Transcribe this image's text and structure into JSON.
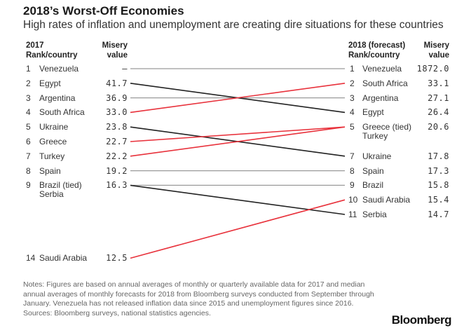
{
  "title": "2018’s Worst-Off Economies",
  "subtitle": "High rates of inflation and unemployment are creating dire situations for these countries",
  "headers": {
    "left_rank_line1": "2017",
    "left_rank_line2": "Rank/country",
    "left_value_line1": "Misery",
    "left_value_line2": "value",
    "right_rank_line1": "2018 (forecast)",
    "right_rank_line2": "Rank/country",
    "right_value_line1": "Misery",
    "right_value_line2": "value"
  },
  "colors": {
    "up": "#e8323c",
    "down": "#222222",
    "same": "#9a9a9a"
  },
  "chart_data": {
    "type": "slope",
    "title": "2018’s Worst-Off Economies",
    "subtitle": "High rates of inflation and unemployment are creating dire situations for these countries",
    "left": [
      {
        "rank": "1",
        "country": "Venezuela",
        "value": "–"
      },
      {
        "rank": "2",
        "country": "Egypt",
        "value": "41.7"
      },
      {
        "rank": "3",
        "country": "Argentina",
        "value": "36.9"
      },
      {
        "rank": "4",
        "country": "South Africa",
        "value": "33.0"
      },
      {
        "rank": "5",
        "country": "Ukraine",
        "value": "23.8"
      },
      {
        "rank": "6",
        "country": "Greece",
        "value": "22.7"
      },
      {
        "rank": "7",
        "country": "Turkey",
        "value": "22.2"
      },
      {
        "rank": "8",
        "country": "Spain",
        "value": "19.2"
      },
      {
        "rank": "9",
        "country": "Brazil (tied)",
        "country2": "Serbia",
        "value": "16.3"
      },
      {
        "rank": "14",
        "country": "Saudi Arabia",
        "value": "12.5"
      }
    ],
    "right": [
      {
        "rank": "1",
        "country": "Venezuela",
        "value": "1872.0"
      },
      {
        "rank": "2",
        "country": "South Africa",
        "value": "33.1"
      },
      {
        "rank": "3",
        "country": "Argentina",
        "value": "27.1"
      },
      {
        "rank": "4",
        "country": "Egypt",
        "value": "26.4"
      },
      {
        "rank": "5",
        "country": "Greece (tied)",
        "country2": "Turkey",
        "value": "20.6"
      },
      {
        "rank": "7",
        "country": "Ukraine",
        "value": "17.8"
      },
      {
        "rank": "8",
        "country": "Spain",
        "value": "17.3"
      },
      {
        "rank": "9",
        "country": "Brazil",
        "value": "15.8"
      },
      {
        "rank": "10",
        "country": "Saudi Arabia",
        "value": "15.4"
      },
      {
        "rank": "11",
        "country": "Serbia",
        "value": "14.7"
      }
    ],
    "links": [
      {
        "country": "Venezuela",
        "from_rank": 1,
        "to_rank": 1,
        "trend": "same"
      },
      {
        "country": "Egypt",
        "from_rank": 2,
        "to_rank": 4,
        "trend": "down"
      },
      {
        "country": "Argentina",
        "from_rank": 3,
        "to_rank": 3,
        "trend": "same"
      },
      {
        "country": "South Africa",
        "from_rank": 4,
        "to_rank": 2,
        "trend": "up"
      },
      {
        "country": "Ukraine",
        "from_rank": 5,
        "to_rank": 7,
        "trend": "down"
      },
      {
        "country": "Greece",
        "from_rank": 6,
        "to_rank": 5,
        "trend": "up"
      },
      {
        "country": "Turkey",
        "from_rank": 7,
        "to_rank": 5,
        "trend": "up"
      },
      {
        "country": "Spain",
        "from_rank": 8,
        "to_rank": 8,
        "trend": "same"
      },
      {
        "country": "Brazil",
        "from_rank": 9,
        "to_rank": 9,
        "trend": "same"
      },
      {
        "country": "Serbia",
        "from_rank": 9,
        "to_rank": 11,
        "trend": "down"
      },
      {
        "country": "Saudi Arabia",
        "from_rank": 14,
        "to_rank": 10,
        "trend": "up"
      }
    ]
  },
  "notes": "Notes: Figures are based on annual averages of monthly or quarterly available data for 2017 and median annual averages of monthly forecasts for 2018 from Bloomberg surveys conducted from September through January. Venezuela has not released inflation data since 2015 and unemployment figures since 2016.",
  "sources": "Sources: Bloomberg surveys, national statistics agencies.",
  "brand": "Bloomberg"
}
